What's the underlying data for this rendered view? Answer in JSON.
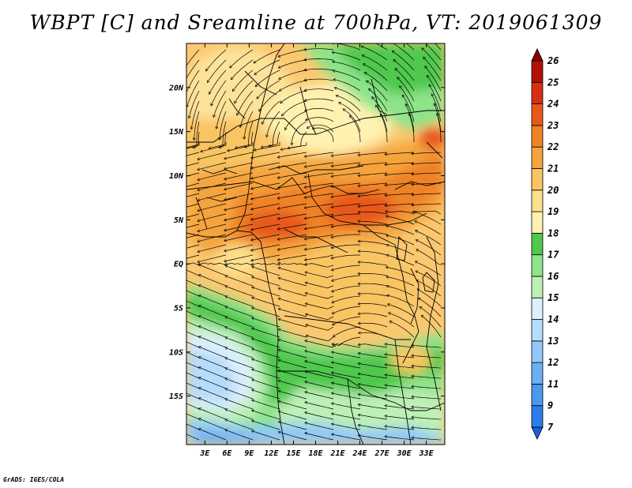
{
  "map": {
    "title": "WBPT [C] and Sreamline at 700hPa, VT: 2019061309",
    "lon_labels": [
      "3E",
      "6E",
      "9E",
      "12E",
      "15E",
      "18E",
      "21E",
      "24E",
      "27E",
      "30E",
      "33E"
    ],
    "lat_labels": [
      "20N",
      "15N",
      "10N",
      "5N",
      "EQ",
      "5S",
      "10S",
      "15S"
    ],
    "lon_values": [
      3,
      6,
      9,
      12,
      15,
      18,
      21,
      24,
      27,
      30,
      33
    ],
    "lat_values": [
      20,
      15,
      10,
      5,
      0,
      -5,
      -10,
      -15
    ],
    "lon_range": [
      0.5,
      35.5
    ],
    "lat_range": [
      -20.5,
      25
    ],
    "colorbar": {
      "labels": [
        "7",
        "9",
        "11",
        "12",
        "13",
        "14",
        "15",
        "16",
        "17",
        "18",
        "19",
        "20",
        "21",
        "22",
        "23",
        "24",
        "25",
        "26"
      ],
      "colors": [
        "#1a5fdc",
        "#2c7ee8",
        "#4b98f0",
        "#6cb0f4",
        "#90c8f8",
        "#b6dcfb",
        "#dcf0fd",
        "#bdf0b6",
        "#8de48a",
        "#4fc84d",
        "#fff2b0",
        "#fde08c",
        "#f9c564",
        "#f5a43c",
        "#ef8226",
        "#e8581a",
        "#d82e12",
        "#b41008",
        "#8e0000"
      ]
    },
    "credit": "GrADS: IGES/COLA"
  }
}
